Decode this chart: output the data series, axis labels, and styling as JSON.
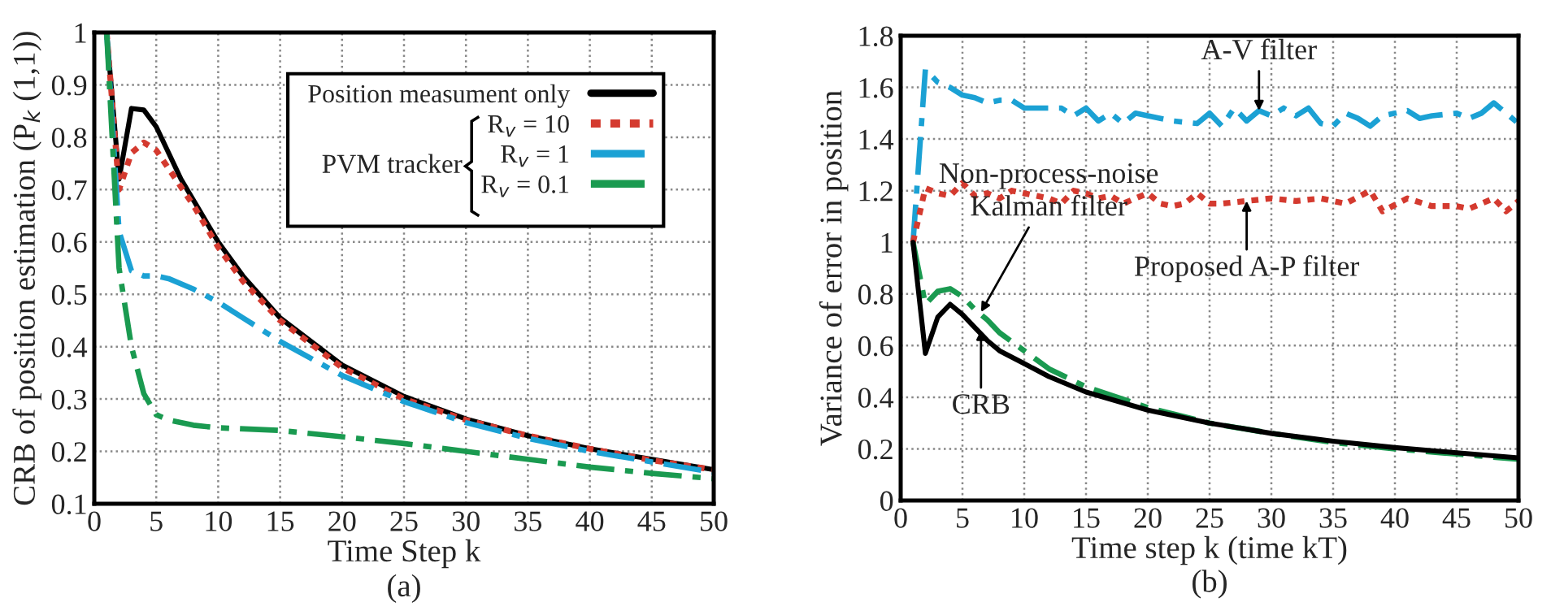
{
  "chart_data": [
    {
      "type": "line",
      "xlabel": "Time Step k",
      "ylabel": "CRB of position estimation (P$_{k}$ (1,1))",
      "xlim": [
        0,
        50
      ],
      "xticks": [
        0,
        5,
        10,
        15,
        20,
        25,
        30,
        35,
        40,
        45,
        50
      ],
      "ylim": [
        0.1,
        1
      ],
      "yticks": [
        0.1,
        0.2,
        0.3,
        0.4,
        0.5,
        0.6,
        0.7,
        0.8,
        0.9,
        1
      ],
      "grid": true,
      "legend": "top right",
      "annotations": [
        "(a)",
        "PVM tracker"
      ],
      "series": [
        {
          "name": "Position measument only",
          "color": "#000000",
          "line_style": "solid",
          "x": [
            1,
            2,
            3,
            4,
            5,
            6,
            7,
            8,
            9,
            10,
            12,
            15,
            20,
            25,
            30,
            35,
            40,
            45,
            50
          ],
          "values": [
            1.0,
            0.72,
            0.855,
            0.852,
            0.82,
            0.77,
            0.72,
            0.68,
            0.64,
            0.6,
            0.535,
            0.455,
            0.365,
            0.305,
            0.262,
            0.23,
            0.205,
            0.185,
            0.165
          ]
        },
        {
          "name": "R$_{v}$ = 10",
          "color": "#d43a2f",
          "line_style": "dotted",
          "x": [
            1,
            2,
            3,
            4,
            5,
            6,
            8,
            10,
            12,
            15,
            20,
            25,
            30,
            35,
            40,
            45,
            50
          ],
          "values": [
            1.0,
            0.7,
            0.77,
            0.79,
            0.775,
            0.74,
            0.67,
            0.59,
            0.525,
            0.45,
            0.36,
            0.3,
            0.26,
            0.23,
            0.205,
            0.183,
            0.165
          ]
        },
        {
          "name": "R$_{v}$ = 1",
          "color": "#1ba1d4",
          "line_style": "dashed",
          "x": [
            1,
            2,
            3,
            4,
            5,
            6,
            8,
            10,
            12,
            15,
            20,
            25,
            30,
            35,
            40,
            45,
            50
          ],
          "values": [
            1.0,
            0.62,
            0.545,
            0.535,
            0.535,
            0.53,
            0.51,
            0.485,
            0.455,
            0.41,
            0.345,
            0.295,
            0.255,
            0.225,
            0.2,
            0.18,
            0.16
          ]
        },
        {
          "name": "R$_{v}$ = 0.1",
          "color": "#1a9a50",
          "line_style": "dashed",
          "x": [
            1,
            2,
            3,
            4,
            5,
            6,
            8,
            10,
            15,
            20,
            25,
            30,
            35,
            40,
            45,
            50
          ],
          "values": [
            1.0,
            0.55,
            0.4,
            0.31,
            0.27,
            0.26,
            0.25,
            0.245,
            0.24,
            0.228,
            0.215,
            0.2,
            0.185,
            0.17,
            0.158,
            0.148
          ]
        }
      ]
    },
    {
      "type": "line",
      "xlabel": "Time step k (time kT)",
      "ylabel": "Variance of error in position",
      "xlim": [
        0,
        50
      ],
      "xticks": [
        0,
        5,
        10,
        15,
        20,
        25,
        30,
        35,
        40,
        45,
        50
      ],
      "ylim": [
        0,
        1.8
      ],
      "yticks": [
        0,
        0.2,
        0.4,
        0.6,
        0.8,
        1,
        1.2,
        1.4,
        1.6,
        1.8
      ],
      "grid": true,
      "annotations": [
        "(b)",
        {
          "text": "A-V filter",
          "x": 29,
          "y": 1.51
        },
        {
          "text": "Proposed A-P filter",
          "x": 28,
          "y": 1.16
        },
        {
          "text": "Non-process-noise\nKalman filter",
          "x": 6.5,
          "y": 0.73
        },
        {
          "text": "CRB",
          "x": 6.5,
          "y": 0.66
        }
      ],
      "series": [
        {
          "color": "#1ba1d4",
          "line_style": "dashed",
          "x": [
            1,
            2,
            3,
            4,
            5,
            6,
            7,
            8,
            9,
            10,
            11,
            12,
            13,
            14,
            15,
            16,
            17,
            18,
            19,
            20,
            22,
            24,
            25,
            26,
            27,
            28,
            29,
            30,
            31,
            32,
            33,
            34,
            35,
            36,
            37,
            38,
            39,
            40,
            41,
            42,
            43,
            45,
            46,
            47,
            48,
            49,
            50
          ],
          "values": [
            1.0,
            1.67,
            1.62,
            1.6,
            1.57,
            1.56,
            1.54,
            1.55,
            1.55,
            1.52,
            1.52,
            1.52,
            1.52,
            1.49,
            1.52,
            1.47,
            1.5,
            1.46,
            1.5,
            1.49,
            1.47,
            1.46,
            1.5,
            1.45,
            1.52,
            1.47,
            1.51,
            1.49,
            1.52,
            1.49,
            1.52,
            1.46,
            1.45,
            1.5,
            1.48,
            1.45,
            1.49,
            1.5,
            1.51,
            1.48,
            1.49,
            1.5,
            1.48,
            1.5,
            1.54,
            1.5,
            1.46
          ]
        },
        {
          "color": "#d43a2f",
          "line_style": "dotted",
          "x": [
            1,
            2,
            3,
            4,
            5,
            6,
            7,
            8,
            9,
            10,
            11,
            12,
            13,
            14,
            15,
            16,
            17,
            18,
            19,
            20,
            21,
            22,
            23,
            24,
            25,
            26,
            28,
            30,
            32,
            34,
            36,
            38,
            39,
            41,
            43,
            45,
            46,
            48,
            49,
            50
          ],
          "values": [
            1.0,
            1.21,
            1.19,
            1.18,
            1.23,
            1.18,
            1.19,
            1.17,
            1.2,
            1.19,
            1.18,
            1.17,
            1.15,
            1.2,
            1.19,
            1.17,
            1.18,
            1.15,
            1.17,
            1.19,
            1.15,
            1.14,
            1.15,
            1.19,
            1.15,
            1.15,
            1.16,
            1.17,
            1.16,
            1.17,
            1.15,
            1.2,
            1.12,
            1.17,
            1.14,
            1.14,
            1.13,
            1.17,
            1.12,
            1.16
          ]
        },
        {
          "color": "#1a9a50",
          "line_style": "dashed",
          "x": [
            1,
            2,
            3,
            4,
            5,
            6,
            7,
            8,
            10,
            12,
            15,
            20,
            25,
            30,
            35,
            40,
            45,
            50
          ],
          "values": [
            1.0,
            0.76,
            0.81,
            0.82,
            0.79,
            0.74,
            0.7,
            0.65,
            0.58,
            0.51,
            0.44,
            0.36,
            0.3,
            0.26,
            0.225,
            0.2,
            0.18,
            0.16
          ]
        },
        {
          "color": "#000000",
          "line_style": "solid",
          "x": [
            1,
            2,
            3,
            4,
            5,
            6,
            7,
            8,
            10,
            12,
            15,
            20,
            25,
            30,
            35,
            40,
            45,
            50
          ],
          "values": [
            1.0,
            0.57,
            0.71,
            0.76,
            0.72,
            0.67,
            0.62,
            0.58,
            0.53,
            0.48,
            0.42,
            0.35,
            0.3,
            0.26,
            0.23,
            0.205,
            0.185,
            0.165
          ]
        }
      ]
    }
  ]
}
